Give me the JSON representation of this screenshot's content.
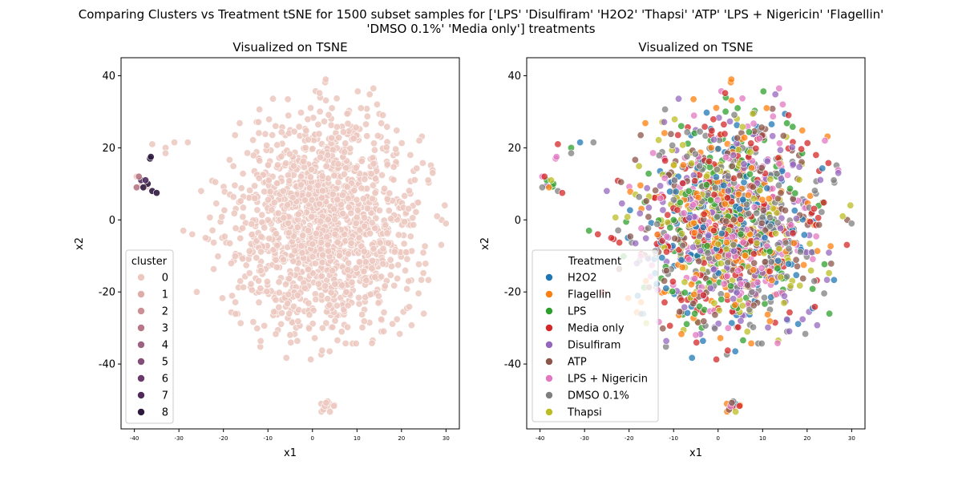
{
  "figure": {
    "suptitle_line1": "Comparing Clusters vs Treatment tSNE for 1500 subset samples for ['LPS' 'Disulfiram' 'H2O2' 'Thapsi' 'ATP' 'LPS + Nigericin' 'Flagellin'",
    "suptitle_line2": "'DMSO 0.1%' 'Media only'] treatments"
  },
  "chart_data": [
    {
      "type": "scatter",
      "title": "Visualized on TSNE",
      "xlabel": "x1",
      "ylabel": "x2",
      "xlim": [
        -43,
        33
      ],
      "ylim": [
        -58,
        45
      ],
      "xticks": [
        "-40",
        "-30",
        "-20",
        "-10",
        "0",
        "10",
        "20",
        "30"
      ],
      "yticks": [
        "40",
        "20",
        "0",
        "-20",
        "-40"
      ],
      "legend": {
        "title": "cluster",
        "placement": "lower-left",
        "entries": [
          "0",
          "1",
          "2",
          "3",
          "4",
          "5",
          "6",
          "7",
          "8"
        ],
        "colors": [
          "#ecc8bf",
          "#dfaca8",
          "#cc8f95",
          "#b87786",
          "#9d6181",
          "#844e78",
          "#693a6c",
          "#4f2b5c",
          "#2f1a3e"
        ]
      },
      "series": [
        {
          "name": "0",
          "color": "#ecc8bf",
          "description": "main body of ~1480 points, circular cloud from x≈-27..29, y≈-42..40",
          "center": [
            3,
            -1
          ]
        },
        {
          "name": "0",
          "color": "#ecc8bf",
          "description": "small cluster",
          "center": [
            2.5,
            -52
          ]
        },
        {
          "name": "8",
          "color": "#2f1a3e",
          "points": [
            [
              -37,
              10
            ],
            [
              -36,
              8
            ],
            [
              -38,
              9
            ],
            [
              -35,
              7.5
            ],
            [
              -36.5,
              17
            ],
            [
              -36.3,
              17.5
            ]
          ]
        },
        {
          "name": "7",
          "color": "#4f2b5c",
          "points": [
            [
              -38.5,
              11
            ],
            [
              -37.5,
              11
            ]
          ]
        },
        {
          "name": "3",
          "color": "#b87786",
          "points": [
            [
              -39.5,
              9
            ],
            [
              -39,
              12
            ]
          ]
        }
      ]
    },
    {
      "type": "scatter",
      "title": "Visualized on TSNE",
      "xlabel": "x1",
      "ylabel": "x2",
      "xlim": [
        -43,
        33
      ],
      "ylim": [
        -58,
        45
      ],
      "xticks": [
        "-40",
        "-30",
        "-20",
        "-10",
        "0",
        "10",
        "20",
        "30"
      ],
      "yticks": [
        "40",
        "20",
        "0",
        "-20",
        "-40"
      ],
      "legend": {
        "title": "Treatment",
        "placement": "lower-left",
        "entries": [
          "H2O2",
          "Flagellin",
          "LPS",
          "Media only",
          "Disulfiram",
          "ATP",
          "LPS + Nigericin",
          "DMSO 0.1%",
          "Thapsi"
        ],
        "colors": [
          "#1f77b4",
          "#ff7f0e",
          "#2ca02c",
          "#d62728",
          "#9467bd",
          "#8c564b",
          "#e377c2",
          "#7f7f7f",
          "#bcbd22"
        ]
      },
      "series_note": "same 1500 points as the left panel, colored by treatment (roughly equal mix of the nine treatments)"
    }
  ]
}
